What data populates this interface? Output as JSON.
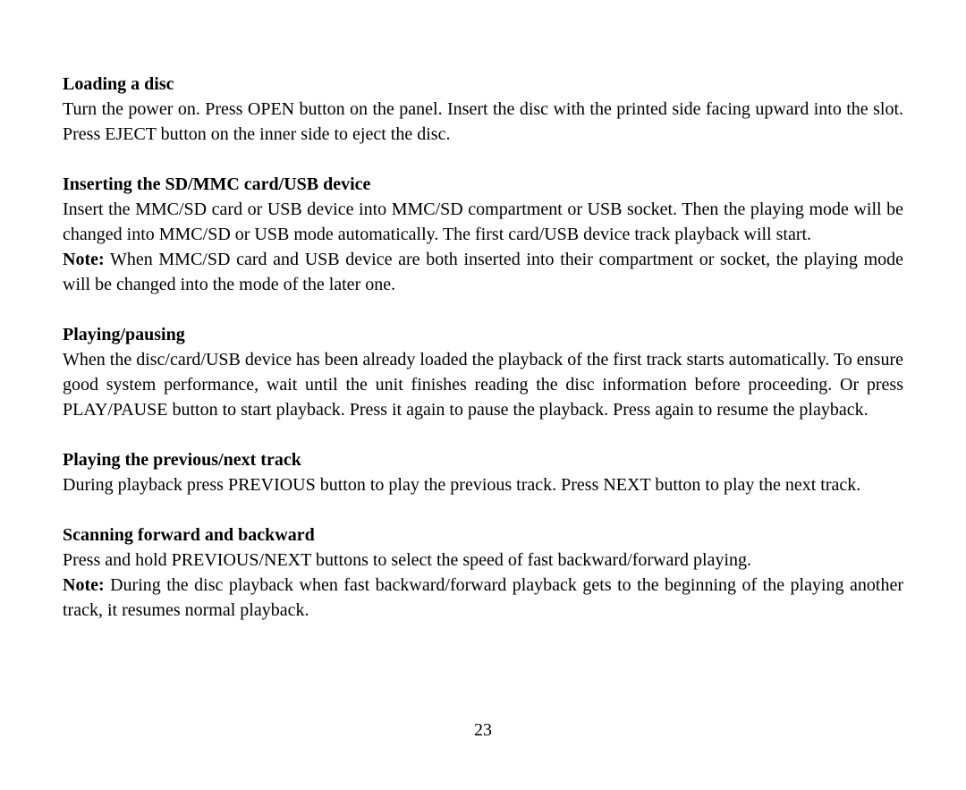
{
  "page": {
    "number": "23",
    "font_family": "Times New Roman",
    "font_size_pt": 15,
    "text_color": "#000000",
    "background_color": "#ffffff"
  },
  "sections": {
    "loading": {
      "heading": "Loading a disc",
      "body": "Turn the power on. Press OPEN button on the panel. Insert the disc with the printed side facing upward into the slot. Press EJECT button on the inner side to eject the disc."
    },
    "inserting": {
      "heading": "Inserting the SD/MMC card/USB device",
      "body1": "Insert the MMC/SD card or USB device into MMC/SD compartment or USB socket. Then the playing mode will be changed into MMC/SD or USB mode automatically. The first card/USB device track playback will start.",
      "note_label": "Note:",
      "note_body": " When MMC/SD card and USB device are both inserted into their compartment or socket, the playing mode will be changed into the mode of the later one."
    },
    "playing": {
      "heading": "Playing/pausing",
      "body": "When the disc/card/USB device has been already loaded the playback of the first track starts automatically. To ensure good system performance, wait until the unit finishes reading the disc information before proceeding. Or press PLAY/PAUSE button to start playback. Press it again to pause the playback. Press again to resume the playback."
    },
    "prevnext": {
      "heading": "Playing the previous/next track",
      "body": "During playback press PREVIOUS button to play the previous track. Press NEXT button to play the next track."
    },
    "scanning": {
      "heading": "Scanning forward and backward",
      "body1": "Press and hold PREVIOUS/NEXT buttons to select the speed of fast backward/forward playing.",
      "note_label": "Note:",
      "note_body": " During the disc playback when fast backward/forward playback gets to the beginning of the playing another track, it resumes normal playback."
    }
  }
}
